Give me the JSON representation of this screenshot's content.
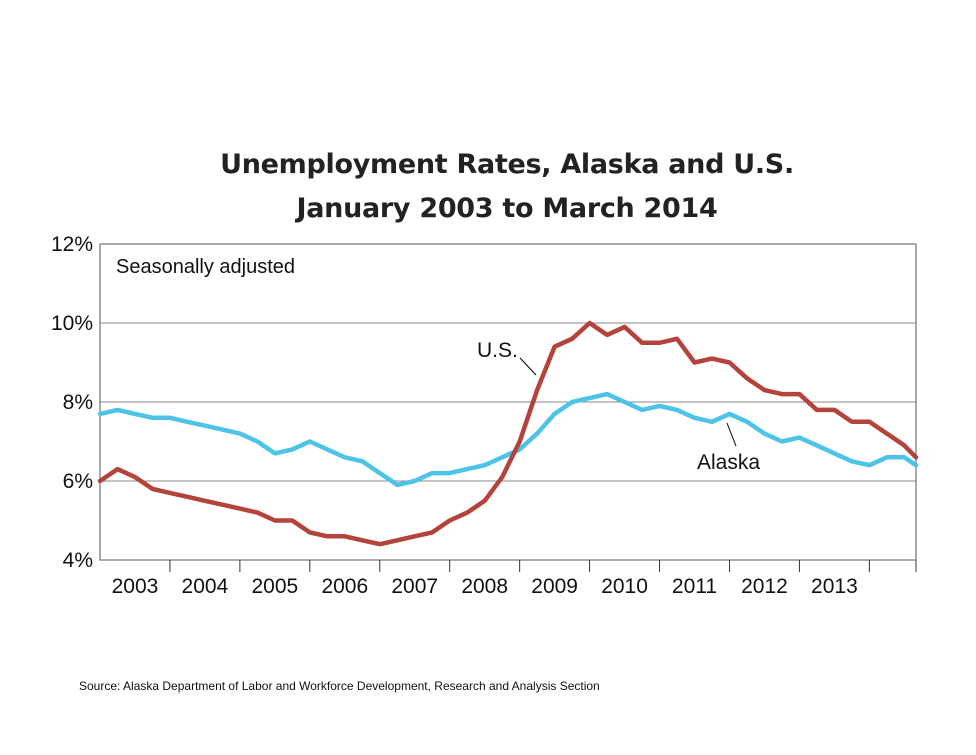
{
  "chart_data": {
    "type": "line",
    "title": "Unemployment Rates, Alaska and U.S.",
    "subtitle": "January 2003 to March 2014",
    "note": "Seasonally adjusted",
    "xlabel": "",
    "ylabel": "",
    "ylim": [
      4,
      12
    ],
    "y_ticks": [
      "4%",
      "6%",
      "8%",
      "10%",
      "12%"
    ],
    "x_ticks": [
      "2003",
      "2004",
      "2005",
      "2006",
      "2007",
      "2008",
      "2009",
      "2010",
      "2011",
      "2012",
      "2013"
    ],
    "x_range": [
      "Jan 2003",
      "Mar 2014"
    ],
    "grid": "horizontal",
    "legend": "inline labels",
    "series": [
      {
        "name": "U.S.",
        "color": "#b3433b",
        "points": [
          [
            0,
            6.0
          ],
          [
            3,
            6.3
          ],
          [
            6,
            6.1
          ],
          [
            9,
            5.8
          ],
          [
            12,
            5.7
          ],
          [
            15,
            5.6
          ],
          [
            18,
            5.5
          ],
          [
            21,
            5.4
          ],
          [
            24,
            5.3
          ],
          [
            27,
            5.2
          ],
          [
            30,
            5.0
          ],
          [
            33,
            5.0
          ],
          [
            36,
            4.7
          ],
          [
            39,
            4.6
          ],
          [
            42,
            4.6
          ],
          [
            45,
            4.5
          ],
          [
            48,
            4.4
          ],
          [
            51,
            4.5
          ],
          [
            54,
            4.6
          ],
          [
            57,
            4.7
          ],
          [
            60,
            5.0
          ],
          [
            63,
            5.2
          ],
          [
            66,
            5.5
          ],
          [
            69,
            6.1
          ],
          [
            72,
            7.0
          ],
          [
            75,
            8.3
          ],
          [
            78,
            9.4
          ],
          [
            81,
            9.6
          ],
          [
            84,
            10.0
          ],
          [
            87,
            9.7
          ],
          [
            90,
            9.9
          ],
          [
            93,
            9.5
          ],
          [
            96,
            9.5
          ],
          [
            99,
            9.6
          ],
          [
            102,
            9.0
          ],
          [
            105,
            9.1
          ],
          [
            108,
            9.0
          ],
          [
            111,
            8.6
          ],
          [
            114,
            8.3
          ],
          [
            117,
            8.2
          ],
          [
            120,
            8.2
          ],
          [
            123,
            7.8
          ],
          [
            126,
            7.8
          ],
          [
            129,
            7.5
          ],
          [
            132,
            7.5
          ],
          [
            135,
            7.2
          ],
          [
            138,
            6.9
          ],
          [
            140,
            6.6
          ]
        ]
      },
      {
        "name": "Alaska",
        "color": "#4dc3e8",
        "points": [
          [
            0,
            7.7
          ],
          [
            3,
            7.8
          ],
          [
            6,
            7.7
          ],
          [
            9,
            7.6
          ],
          [
            12,
            7.6
          ],
          [
            15,
            7.5
          ],
          [
            18,
            7.4
          ],
          [
            21,
            7.3
          ],
          [
            24,
            7.2
          ],
          [
            27,
            7.0
          ],
          [
            30,
            6.7
          ],
          [
            33,
            6.8
          ],
          [
            36,
            7.0
          ],
          [
            39,
            6.8
          ],
          [
            42,
            6.6
          ],
          [
            45,
            6.5
          ],
          [
            48,
            6.2
          ],
          [
            51,
            5.9
          ],
          [
            54,
            6.0
          ],
          [
            57,
            6.2
          ],
          [
            60,
            6.2
          ],
          [
            63,
            6.3
          ],
          [
            66,
            6.4
          ],
          [
            69,
            6.6
          ],
          [
            72,
            6.8
          ],
          [
            75,
            7.2
          ],
          [
            78,
            7.7
          ],
          [
            81,
            8.0
          ],
          [
            84,
            8.1
          ],
          [
            87,
            8.2
          ],
          [
            90,
            8.0
          ],
          [
            93,
            7.8
          ],
          [
            96,
            7.9
          ],
          [
            99,
            7.8
          ],
          [
            102,
            7.6
          ],
          [
            105,
            7.5
          ],
          [
            108,
            7.7
          ],
          [
            111,
            7.5
          ],
          [
            114,
            7.2
          ],
          [
            117,
            7.0
          ],
          [
            120,
            7.1
          ],
          [
            123,
            6.9
          ],
          [
            126,
            6.7
          ],
          [
            129,
            6.5
          ],
          [
            132,
            6.4
          ],
          [
            135,
            6.6
          ],
          [
            138,
            6.6
          ],
          [
            140,
            6.4
          ]
        ]
      }
    ],
    "series_labels": [
      "U.S.",
      "Alaska"
    ]
  },
  "source": "Source: Alaska Department of Labor and Workforce Development, Research and Analysis Section"
}
